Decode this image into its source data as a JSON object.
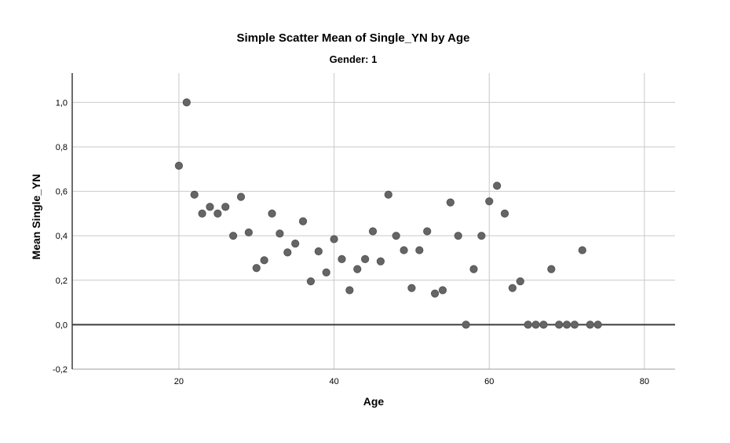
{
  "chart_data": {
    "type": "scatter",
    "title": "Simple Scatter Mean of Single_YN by Age",
    "subtitle": "Gender: 1",
    "xlabel": "Age",
    "ylabel": "Mean Single_YN",
    "xlim": [
      6.25,
      83.95
    ],
    "ylim": [
      -0.2,
      1.132
    ],
    "grid": true,
    "zero_reference_line": 0.0,
    "x_ticks": [
      {
        "value": 20,
        "label": "20"
      },
      {
        "value": 40,
        "label": "40"
      },
      {
        "value": 60,
        "label": "60"
      },
      {
        "value": 80,
        "label": "80"
      }
    ],
    "y_ticks": [
      {
        "value": 1.0,
        "label": "1,0"
      },
      {
        "value": 0.8,
        "label": "0,8"
      },
      {
        "value": 0.6,
        "label": "0,6"
      },
      {
        "value": 0.4,
        "label": "0,4"
      },
      {
        "value": 0.2,
        "label": "0,2"
      },
      {
        "value": 0.0,
        "label": "0,0"
      },
      {
        "value": -0.2,
        "label": "-0,2"
      }
    ],
    "marker": {
      "shape": "circle",
      "radius": 4.6,
      "color": "#656565",
      "outline": "#565656"
    },
    "points": [
      [
        20,
        0.715
      ],
      [
        21,
        1.0
      ],
      [
        22,
        0.585
      ],
      [
        23,
        0.5
      ],
      [
        24,
        0.53
      ],
      [
        25,
        0.5
      ],
      [
        26,
        0.53
      ],
      [
        27,
        0.4
      ],
      [
        28,
        0.575
      ],
      [
        29,
        0.415
      ],
      [
        30,
        0.255
      ],
      [
        31,
        0.29
      ],
      [
        32,
        0.5
      ],
      [
        33,
        0.41
      ],
      [
        34,
        0.325
      ],
      [
        35,
        0.365
      ],
      [
        36,
        0.465
      ],
      [
        37,
        0.195
      ],
      [
        38,
        0.33
      ],
      [
        39,
        0.235
      ],
      [
        40,
        0.385
      ],
      [
        41,
        0.295
      ],
      [
        42,
        0.155
      ],
      [
        43,
        0.25
      ],
      [
        44,
        0.295
      ],
      [
        45,
        0.42
      ],
      [
        46,
        0.285
      ],
      [
        47,
        0.585
      ],
      [
        48,
        0.4
      ],
      [
        49,
        0.335
      ],
      [
        50,
        0.165
      ],
      [
        51,
        0.335
      ],
      [
        52,
        0.42
      ],
      [
        53,
        0.14
      ],
      [
        54,
        0.155
      ],
      [
        55,
        0.55
      ],
      [
        56,
        0.4
      ],
      [
        57,
        0.0
      ],
      [
        58,
        0.25
      ],
      [
        59,
        0.4
      ],
      [
        60,
        0.555
      ],
      [
        61,
        0.625
      ],
      [
        62,
        0.5
      ],
      [
        63,
        0.165
      ],
      [
        64,
        0.195
      ],
      [
        65,
        0.0
      ],
      [
        66,
        0.0
      ],
      [
        67,
        0.0
      ],
      [
        68,
        0.25
      ],
      [
        69,
        0.0
      ],
      [
        70,
        0.0
      ],
      [
        71,
        0.0
      ],
      [
        72,
        0.335
      ],
      [
        73,
        0.0
      ],
      [
        74,
        0.0
      ]
    ]
  },
  "colors": {
    "background": "#ffffff",
    "gridline": "#c9c9c9",
    "axis_line": "#3c3c3c",
    "zero_line": "#3c3c3c",
    "bottom_border": "#9c9c9c",
    "text": "#000000",
    "dot": "#656565"
  }
}
